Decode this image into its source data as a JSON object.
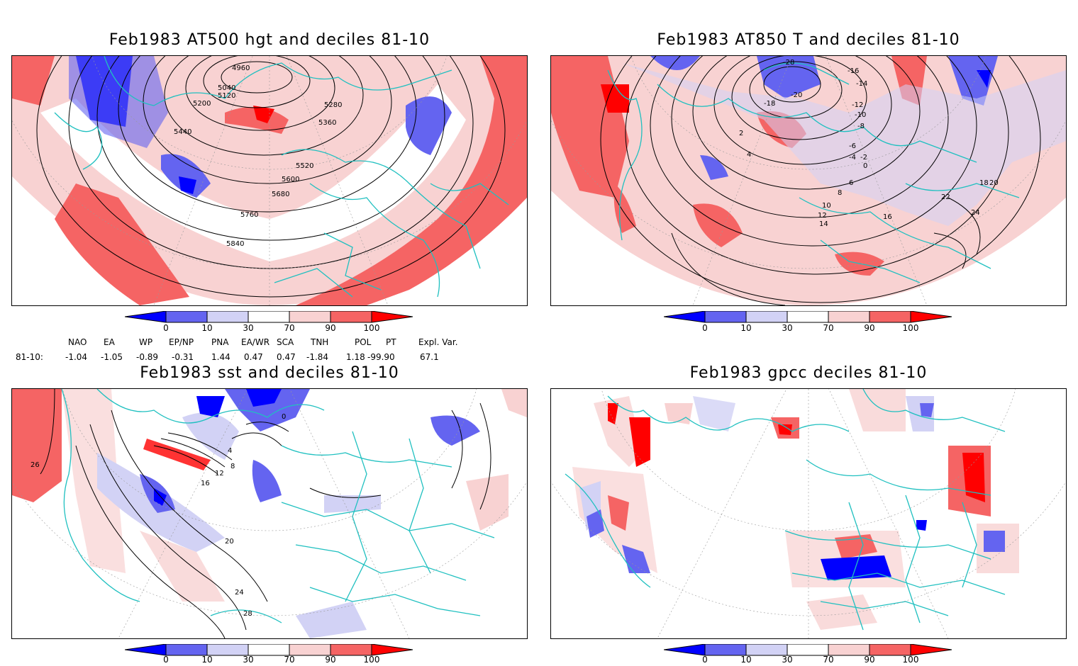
{
  "panels": [
    {
      "id": "hgt500",
      "title": "Feb1983 AT500 hgt and deciles 81-10",
      "contour_labels": [
        "4960",
        "5040",
        "5120",
        "5200",
        "5280",
        "5360",
        "5440",
        "5520",
        "5600",
        "5680",
        "5760",
        "5840"
      ]
    },
    {
      "id": "t850",
      "title": "Feb1983 AT850 T and deciles 81-10",
      "contour_labels": [
        "-28",
        "-20",
        "-18",
        "-16",
        "-14",
        "-12",
        "-10",
        "-8",
        "-6",
        "-4",
        "-2",
        "0",
        "2",
        "4",
        "6",
        "8",
        "10",
        "12",
        "14",
        "16",
        "18",
        "20",
        "22",
        "24"
      ]
    },
    {
      "id": "sst",
      "title": "Feb1983 sst and deciles 81-10",
      "contour_labels": [
        "0",
        "4",
        "8",
        "12",
        "16",
        "20",
        "24",
        "26",
        "28"
      ]
    },
    {
      "id": "gpcc",
      "title": "Feb1983 gpcc deciles 81-10",
      "contour_labels": []
    }
  ],
  "colorbar": {
    "ticks": [
      "0",
      "10",
      "30",
      "70",
      "90",
      "100"
    ],
    "colors": {
      "strong_blue": "#0000ff",
      "mid_blue": "#6464f0",
      "light_blue": "#d2d2f5",
      "white": "#ffffff",
      "light_red": "#f8d2d2",
      "mid_red": "#f56464",
      "strong_red": "#ff0000"
    }
  },
  "indices": {
    "headers": [
      "NAO",
      "EA",
      "WP",
      "EP/NP",
      "PNA",
      "EA/WR",
      "SCA",
      "TNH",
      "POL",
      "PT",
      "Expl. Var."
    ],
    "row_label": "81-10:",
    "values": [
      "-1.04",
      "-1.05",
      "-0.89",
      "-0.31",
      "1.44",
      "0.47",
      "0.47",
      "-1.84",
      "1.18",
      "-99.90",
      "67.1"
    ]
  },
  "map_style": {
    "coast_color": "#20c0c0",
    "contour_color": "#000000"
  }
}
